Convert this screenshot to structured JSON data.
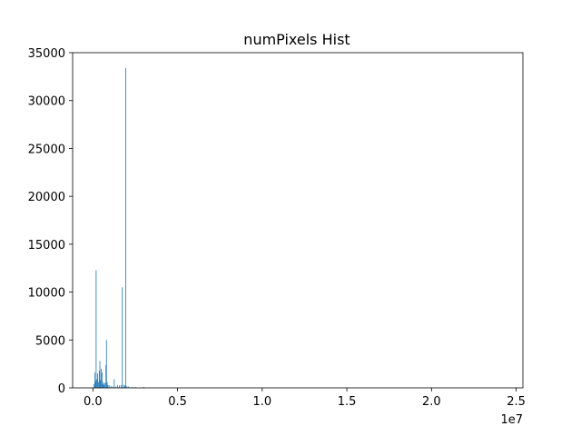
{
  "chart_data": {
    "type": "bar",
    "title": "numPixels Hist",
    "xlabel": "",
    "ylabel": "",
    "x_offset_text": "1e7",
    "xlim": [
      -1200000,
      25400000
    ],
    "ylim": [
      0,
      35000
    ],
    "x_ticks": [
      0,
      5000000,
      10000000,
      15000000,
      20000000,
      25000000
    ],
    "x_tick_labels": [
      "0.0",
      "0.5",
      "1.0",
      "1.5",
      "2.0",
      "2.5"
    ],
    "y_ticks": [
      0,
      5000,
      10000,
      15000,
      20000,
      25000,
      30000,
      35000
    ],
    "y_tick_labels": [
      "0",
      "5000",
      "10000",
      "15000",
      "20000",
      "25000",
      "30000",
      "35000"
    ],
    "grid": false,
    "bar_color": "#1f77b4",
    "bin_width": 24000,
    "bars": [
      {
        "x": 50000,
        "y": 400
      },
      {
        "x": 100000,
        "y": 1600
      },
      {
        "x": 150000,
        "y": 700
      },
      {
        "x": 180000,
        "y": 12300
      },
      {
        "x": 230000,
        "y": 900
      },
      {
        "x": 270000,
        "y": 1500
      },
      {
        "x": 320000,
        "y": 600
      },
      {
        "x": 360000,
        "y": 1800
      },
      {
        "x": 400000,
        "y": 2800
      },
      {
        "x": 440000,
        "y": 800
      },
      {
        "x": 480000,
        "y": 2000
      },
      {
        "x": 530000,
        "y": 1600
      },
      {
        "x": 570000,
        "y": 400
      },
      {
        "x": 610000,
        "y": 600
      },
      {
        "x": 650000,
        "y": 300
      },
      {
        "x": 700000,
        "y": 500
      },
      {
        "x": 760000,
        "y": 2400
      },
      {
        "x": 790000,
        "y": 5000
      },
      {
        "x": 830000,
        "y": 600
      },
      {
        "x": 880000,
        "y": 300
      },
      {
        "x": 950000,
        "y": 250
      },
      {
        "x": 1050000,
        "y": 200
      },
      {
        "x": 1150000,
        "y": 150
      },
      {
        "x": 1250000,
        "y": 900
      },
      {
        "x": 1350000,
        "y": 150
      },
      {
        "x": 1450000,
        "y": 300
      },
      {
        "x": 1550000,
        "y": 250
      },
      {
        "x": 1650000,
        "y": 300
      },
      {
        "x": 1730000,
        "y": 10500
      },
      {
        "x": 1800000,
        "y": 300
      },
      {
        "x": 1870000,
        "y": 250
      },
      {
        "x": 1930000,
        "y": 33400
      },
      {
        "x": 2000000,
        "y": 200
      },
      {
        "x": 2100000,
        "y": 150
      },
      {
        "x": 2300000,
        "y": 100
      },
      {
        "x": 2500000,
        "y": 80
      },
      {
        "x": 3000000,
        "y": 100
      }
    ]
  }
}
